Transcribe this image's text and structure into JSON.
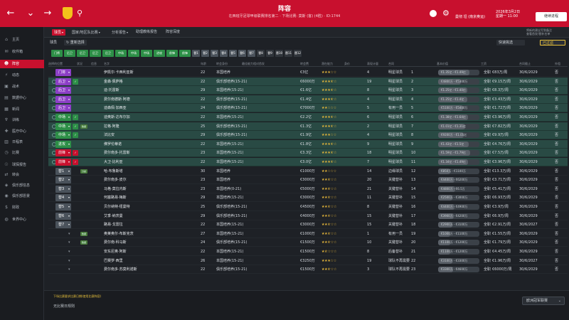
{
  "header": {
    "title": "阵容",
    "subtitle": "在西班牙足球甲级联赛排名第二 · 下场比赛: 莫斯 (客) (4胜) · ID:1744",
    "manager": "曼彻 坦 (南京奥运)",
    "date": "2026年3月2日",
    "time": "星期一 11:00",
    "continue_label": "继续进程"
  },
  "nav_icons": {
    "back": "back-icon",
    "forward": "forward-icon",
    "search": "search-icon"
  },
  "sidebar": {
    "items": [
      {
        "label": "主页",
        "icon": "home-icon"
      },
      {
        "label": "收件箱",
        "icon": "inbox-icon"
      },
      {
        "label": "阵容",
        "icon": "squad-icon"
      },
      {
        "label": "动态",
        "icon": "dynamics-icon"
      },
      {
        "label": "战术",
        "icon": "tactics-icon"
      },
      {
        "label": "数据中心",
        "icon": "data-hub-icon"
      },
      {
        "label": "新闻",
        "icon": "news-icon"
      },
      {
        "label": "训练",
        "icon": "training-icon"
      },
      {
        "label": "医疗中心",
        "icon": "medical-icon"
      },
      {
        "label": "日程表",
        "icon": "calendar-icon"
      },
      {
        "label": "比赛",
        "icon": "competitions-icon"
      },
      {
        "label": "球探报告",
        "icon": "scouting-icon"
      },
      {
        "label": "转会",
        "icon": "transfers-icon"
      },
      {
        "label": "俱乐部信息",
        "icon": "club-info-icon"
      },
      {
        "label": "俱乐部愿景",
        "icon": "club-vision-icon"
      },
      {
        "label": "财政",
        "icon": "finances-icon"
      },
      {
        "label": "世界中心",
        "icon": "world-icon"
      }
    ],
    "active_index": 2
  },
  "subtabs": [
    {
      "label": "球员",
      "dropdown": true
    },
    {
      "label": "国家/地区队比赛",
      "dropdown": true
    },
    {
      "label": "分析报告",
      "dropdown": true
    },
    {
      "label": "助理教练报告",
      "dropdown": false
    },
    {
      "label": "阵容深度",
      "dropdown": false
    }
  ],
  "right_header": {
    "line1": "将新的建议写到备注",
    "line2": "查看首发/替补名单"
  },
  "toolbar": {
    "view_label": "球员",
    "sort_label": "重新选择",
    "quick_select_label": "快速挑选",
    "filter_label": "已过滤"
  },
  "position_chips": [
    {
      "label": "门将",
      "color": "#2d8f47"
    },
    {
      "label": "后卫",
      "color": "#2d8f47"
    },
    {
      "label": "后卫",
      "color": "#2d8f47"
    },
    {
      "label": "后卫",
      "color": "#2d8f47"
    },
    {
      "label": "后卫",
      "color": "#2d8f47"
    },
    {
      "label": "中场",
      "color": "#2d8f47"
    },
    {
      "label": "中场",
      "color": "#2d8f47"
    },
    {
      "label": "中场",
      "color": "#2d8f47"
    },
    {
      "label": "进攻",
      "color": "#2d8f47"
    },
    {
      "label": "前锋",
      "color": "#2d8f47"
    },
    {
      "label": "前锋",
      "color": "#2d8f47"
    },
    {
      "label": "替1",
      "color": "#4a525b"
    },
    {
      "label": "替2",
      "color": "#4a525b"
    },
    {
      "label": "替3",
      "color": "#4a525b"
    },
    {
      "label": "替4",
      "color": "#4a525b"
    },
    {
      "label": "替5",
      "color": "#4a525b"
    },
    {
      "label": "替6",
      "color": "#4a525b"
    },
    {
      "label": "替7",
      "color": "#4a525b"
    },
    {
      "label": "替8",
      "color": "#30353b"
    },
    {
      "label": "替9",
      "color": "#30353b"
    },
    {
      "label": "替10",
      "color": "#30353b"
    },
    {
      "label": "替11",
      "color": "#30353b"
    },
    {
      "label": "替12",
      "color": "#30353b"
    }
  ],
  "columns": [
    "选择的位置",
    "状况",
    "信息",
    "名字",
    "年龄",
    "转会身份",
    "最佳能力相对首发",
    "转会费",
    "潜在能力",
    "身价",
    "表现计量",
    "合同",
    "基本价值",
    "工资",
    "合同截止",
    "外租"
  ],
  "rows": [
    {
      "pos": "门将",
      "pos_color": "#8c3fc6",
      "status_color": "",
      "tag": "",
      "name": "伊凯尔·卡西利亚斯",
      "age": "22",
      "transfer": "本国培养",
      "value": "€3亿",
      "stars": 3,
      "rating": "4",
      "role": "明星球员",
      "number": "1",
      "range": "€1.35亿 - €1.49亿",
      "range_fill": 0.75,
      "contract": "全职",
      "wage": "€83万/周",
      "expiry": "30/6/2029",
      "loan": "否",
      "green": false
    },
    {
      "pos": "后卫",
      "pos_color": "#8c3fc6",
      "status_color": "#2d8f47",
      "tag": "",
      "name": "金森·佩萨格",
      "age": "22",
      "transfer": "俱乐部培养(15-21)",
      "value": "€6000万",
      "stars": 3.5,
      "rating": "19",
      "role": "明星球员",
      "number": "2",
      "range": "€4800万 - €5300万",
      "range_fill": 0.55,
      "contract": "全职",
      "wage": "€9.15万/周",
      "expiry": "30/6/2029",
      "loan": "否",
      "green": true
    },
    {
      "pos": "后卫",
      "pos_color": "#8c3fc6",
      "status_color": "",
      "tag": "",
      "name": "迪·托雷斯",
      "age": "29",
      "transfer": "本国培养(15-21)",
      "value": "€1.6亿",
      "stars": 3.5,
      "rating": "8",
      "role": "明星球员",
      "number": "3",
      "range": "€1.25亿 - €1.40亿",
      "range_fill": 0.7,
      "contract": "全职",
      "wage": "€8.3万/周",
      "expiry": "30/6/2029",
      "loan": "否",
      "green": true
    },
    {
      "pos": "后卫",
      "pos_color": "#8c3fc6",
      "status_color": "",
      "tag": "",
      "name": "费尔南德斯·阿德",
      "age": "22",
      "transfer": "俱乐部培养(15-21)",
      "value": "€1.4亿",
      "stars": 3.5,
      "rating": "4",
      "role": "明星球员",
      "number": "4",
      "range": "€1.25亿 - €1.4亿",
      "range_fill": 0.7,
      "contract": "全职",
      "wage": "€3.43万/周",
      "expiry": "30/6/2029",
      "loan": "否",
      "green": true
    },
    {
      "pos": "后卫",
      "pos_color": "#8c3fc6",
      "status_color": "",
      "tag": "",
      "name": "迪森佩·加西亚",
      "age": "24",
      "transfer": "俱乐部培养(15-21)",
      "value": "€7000万",
      "stars": 2,
      "rating": "5",
      "role": "有用一员",
      "number": "5",
      "range": "€5100万 - €5400万",
      "range_fill": 0.6,
      "contract": "全职",
      "wage": "€1.72万/周",
      "expiry": "30/6/2029",
      "loan": "否",
      "green": true
    },
    {
      "pos": "中场",
      "pos_color": "#2d8f47",
      "status_color": "#2d8f47",
      "tag": "",
      "name": "迪奥斯·达布尔加",
      "age": "22",
      "transfer": "本国培养(15-21)",
      "value": "€2.2亿",
      "stars": 3.5,
      "rating": "6",
      "role": "明星球员",
      "number": "6",
      "range": "€1.38亿 - €1.64亿",
      "range_fill": 0.72,
      "contract": "全职",
      "wage": "€3.96万/周",
      "expiry": "30/6/2029",
      "loan": "否",
      "green": true
    },
    {
      "pos": "中场",
      "pos_color": "#2d8f47",
      "status_color": "#2d8f47",
      "tag": "数据",
      "name": "拉格·阿隆",
      "age": "25",
      "transfer": "俱乐部培养(15-21)",
      "value": "€1.3亿",
      "stars": 3.5,
      "rating": "2",
      "role": "明星球员",
      "number": "7",
      "range": "€1.01亿 - €1.31亿",
      "range_fill": 0.65,
      "contract": "全职",
      "wage": "€7.82万/周",
      "expiry": "30/6/2029",
      "loan": "否",
      "green": true
    },
    {
      "pos": "中场",
      "pos_color": "#2d8f47",
      "status_color": "#2d8f47",
      "tag": "",
      "name": "法比安",
      "age": "29",
      "transfer": "俱乐部培养(15-21)",
      "value": "€1.9亿",
      "stars": 3,
      "rating": "4",
      "role": "明星球员",
      "number": "8",
      "range": "€9200万 - €1.01亿",
      "range_fill": 0.62,
      "contract": "全职",
      "wage": "€9.9万/周",
      "expiry": "30/6/2029",
      "loan": "否",
      "green": true
    },
    {
      "pos": "进攻",
      "pos_color": "#2d8f47",
      "status_color": "",
      "tag": "",
      "name": "佛罗伦蒂诺",
      "age": "22",
      "transfer": "本国培养(15-21)",
      "value": "€1.8亿",
      "stars": 3.5,
      "rating": "9",
      "role": "明星球员",
      "number": "9",
      "range": "€1.43亿 - €1.5亿",
      "range_fill": 0.74,
      "contract": "全职",
      "wage": "€4.76万/周",
      "expiry": "30/6/2029",
      "loan": "否",
      "green": true
    },
    {
      "pos": "前锋",
      "pos_color": "#c8102e",
      "status_color": "#c8102e",
      "tag": "",
      "name": "费尔南多·托雷斯",
      "age": "23",
      "transfer": "本国培养(15-21)",
      "value": "€3.3亿",
      "stars": 3.5,
      "rating": "18",
      "role": "明星球员",
      "number": "10",
      "range": "€1.59亿 - €1.79亿",
      "range_fill": 0.78,
      "contract": "全职",
      "wage": "€7.5万/周",
      "expiry": "30/6/2029",
      "loan": "否",
      "green": true
    },
    {
      "pos": "前锋",
      "pos_color": "#c8102e",
      "status_color": "#c8102e",
      "tag": "",
      "name": "大卫·比利亚",
      "age": "22",
      "transfer": "本国培养(15-21)",
      "value": "€3.0亿",
      "stars": 3.5,
      "rating": "7",
      "role": "明星球员",
      "number": "11",
      "range": "€1.34亿 - €1.49亿",
      "range_fill": 0.73,
      "contract": "全职",
      "wage": "€3.96万/周",
      "expiry": "30/6/2029",
      "loan": "否",
      "green": true
    },
    {
      "pos": "替1",
      "pos_color": "#4a525b",
      "status_color": "",
      "tag": "分歧",
      "name": "哈·布鲁斯塔",
      "age": "30",
      "transfer": "本国培养",
      "value": "€1000万",
      "stars": 2,
      "rating": "14",
      "role": "边缘球员",
      "number": "12",
      "range": "€850万 - €1100万",
      "range_fill": 0.3,
      "contract": "全职",
      "wage": "€13.3万/周",
      "expiry": "30/6/2029",
      "loan": "否",
      "green": false
    },
    {
      "pos": "替2",
      "pos_color": "#4a525b",
      "status_color": "",
      "tag": "",
      "name": "费尔南多·皮尔",
      "age": "23",
      "transfer": "本国培养",
      "value": "€3000万",
      "stars": 2.5,
      "rating": "20",
      "role": "关键替补",
      "number": "13",
      "range": "€4400万 - €6200万",
      "range_fill": 0.4,
      "contract": "全职",
      "wage": "€3.71万/周",
      "expiry": "30/6/2029",
      "loan": "否",
      "green": false
    },
    {
      "pos": "替3",
      "pos_color": "#4a525b",
      "status_color": "",
      "tag": "",
      "name": "马格·莫拉内斯",
      "age": "23",
      "transfer": "本国培养(0-21)",
      "value": "€5000万",
      "stars": 2.5,
      "rating": "21",
      "role": "关键替补",
      "number": "14",
      "range": "€4800万 - €6.5万",
      "range_fill": 0.42,
      "contract": "全职",
      "wage": "€5.41万/周",
      "expiry": "30/6/2029",
      "loan": "否",
      "green": false
    },
    {
      "pos": "替4",
      "pos_color": "#4a525b",
      "status_color": "",
      "tag": "",
      "name": "何塞路易·梅斯",
      "age": "29",
      "transfer": "本国培养(15-21)",
      "value": "€3000万",
      "stars": 2.5,
      "rating": "11",
      "role": "关键替补",
      "number": "15",
      "range": "€2500万 - €3000万",
      "range_fill": 0.35,
      "contract": "全职",
      "wage": "€6.93万/周",
      "expiry": "30/6/2029",
      "loan": "否",
      "green": false
    },
    {
      "pos": "替5",
      "pos_color": "#4a525b",
      "status_color": "",
      "tag": "",
      "name": "贝尔纳特·纽曼特",
      "age": "25",
      "transfer": "俱乐部培养(15-21)",
      "value": "€4500万",
      "stars": 2.5,
      "rating": "8",
      "role": "关键替补",
      "number": "16",
      "range": "€4400万 - €4900万",
      "range_fill": 0.4,
      "contract": "全职",
      "wage": "€3.9万/周",
      "expiry": "30/6/2029",
      "loan": "否",
      "green": false
    },
    {
      "pos": "替6",
      "pos_color": "#4a525b",
      "status_color": "",
      "tag": "",
      "name": "艾季·纳茨曼",
      "age": "29",
      "transfer": "俱乐部培养(15-21)",
      "value": "€4000万",
      "stars": 2.5,
      "rating": "15",
      "role": "关键替补",
      "number": "17",
      "range": "€3900万 - €4200万",
      "range_fill": 0.38,
      "contract": "全职",
      "wage": "€6.9万/周",
      "expiry": "30/6/2029",
      "loan": "否",
      "green": false
    },
    {
      "pos": "替7",
      "pos_color": "#4a525b",
      "status_color": "",
      "tag": "",
      "name": "路易·戈雷拉",
      "age": "22",
      "transfer": "本国培养(15-21)",
      "value": "€3000万",
      "stars": 2.5,
      "rating": "15",
      "role": "关键替补",
      "number": "18",
      "range": "€2900万 - €3100万",
      "range_fill": 0.34,
      "contract": "全职",
      "wage": "€2.91万/周",
      "expiry": "30/6/2027",
      "loan": "否",
      "green": false
    },
    {
      "pos": "",
      "pos_color": "",
      "status_color": "",
      "tag": "数据",
      "name": "奥莱奥尔·布斯克茨",
      "age": "27",
      "transfer": "本国培养(15-21)",
      "value": "€1000万",
      "stars": 2.5,
      "rating": "1",
      "role": "有用一员",
      "number": "19",
      "range": "€1000万 - €1100万",
      "range_fill": 0.3,
      "contract": "全职",
      "wage": "€1.55万/周",
      "expiry": "30/6/2029",
      "loan": "否",
      "green": false
    },
    {
      "pos": "",
      "pos_color": "",
      "status_color": "",
      "tag": "数据",
      "name": "费尔南·科马斯",
      "age": "24",
      "transfer": "俱乐部培养(15-21)",
      "value": "€1500万",
      "stars": 2.5,
      "rating": "10",
      "role": "关键替补",
      "number": "20",
      "range": "€1100万 - €1200万",
      "range_fill": 0.3,
      "contract": "全职",
      "wage": "€1.79万/周",
      "expiry": "30/6/2029",
      "loan": "否",
      "green": false
    },
    {
      "pos": "",
      "pos_color": "",
      "status_color": "",
      "tag": "",
      "name": "安东尼奥·阿斯",
      "age": "22",
      "transfer": "本国培养(15-21)",
      "value": "€1500万",
      "stars": 1.5,
      "rating": "8",
      "role": "后备替补",
      "number": "21",
      "range": "€1100万 - €1200万",
      "range_fill": 0.3,
      "contract": "全职",
      "wage": "€4.45万/周",
      "expiry": "30/6/2029",
      "loan": "否",
      "green": false
    },
    {
      "pos": "",
      "pos_color": "",
      "status_color": "",
      "tag": "",
      "name": "巴赛罗·西里",
      "age": "26",
      "transfer": "本国培养(15-21)",
      "value": "€3250万",
      "stars": 3,
      "rating": "19",
      "role": "球队不再需要",
      "number": "22",
      "range": "€3100万 - €3300万",
      "range_fill": 0.35,
      "contract": "全职",
      "wage": "€1.96万/周",
      "expiry": "30/6/2027",
      "loan": "否",
      "green": false
    },
    {
      "pos": "",
      "pos_color": "",
      "status_color": "",
      "tag": "",
      "name": "费尔南多·苏莫利诺斯",
      "age": "22",
      "transfer": "俱乐部培养(15-21)",
      "value": "€1500万",
      "stars": 2.5,
      "rating": "3",
      "role": "球队不再需要",
      "number": "23",
      "range": "€3300万 - €4600万",
      "range_fill": 0.36,
      "contract": "全职",
      "wage": "€6000万/周",
      "expiry": "30/6/2029",
      "loan": "否",
      "green": false
    }
  ],
  "bottom": {
    "note": "下场比赛要求比赛日期(使用比赛阵容)",
    "secondary": "无比赛日规则",
    "select_label": "欧洲冠军联赛"
  },
  "colors": {
    "brand": "#c8102e",
    "selected_row": "#294a44",
    "star": "#e6b73a"
  }
}
